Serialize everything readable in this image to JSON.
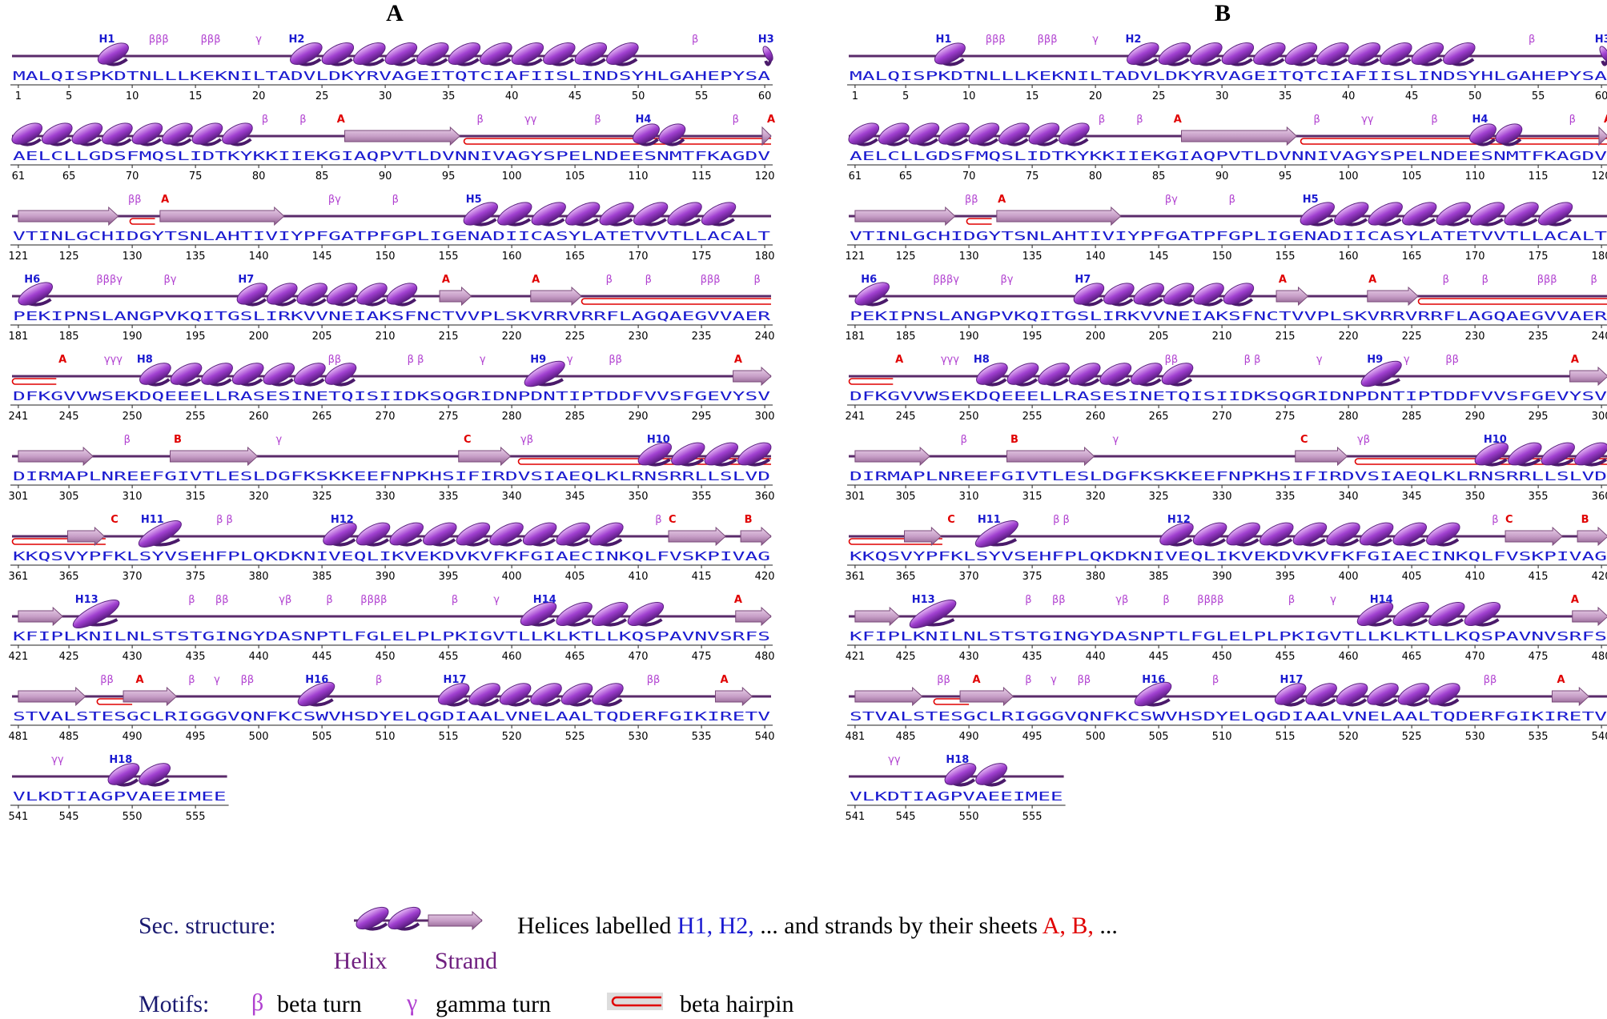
{
  "panels": [
    {
      "label": "A"
    },
    {
      "label": "B"
    }
  ],
  "rows": [
    {
      "sequence": "MALQISPKDTNLLLKEKNILTADVLDKYRVAGEITQTCIAFIISLINDSYHLGAHEPYSA",
      "ticks": [
        1,
        5,
        10,
        15,
        20,
        25,
        30,
        35,
        40,
        45,
        50,
        55,
        60
      ],
      "labels": [
        "H1",
        "βββ",
        "βββ",
        "γ",
        "H2",
        "β",
        "H3"
      ]
    },
    {
      "sequence": "AELCLLGDSFMQSLIDTKYKKIIEKGIAQPVTLDVNNIVAGYSPELNDEESNMTFKAGDV",
      "ticks": [
        61,
        65,
        70,
        75,
        80,
        85,
        90,
        95,
        100,
        105,
        110,
        115,
        120
      ],
      "labels": [
        "β",
        "β",
        "A",
        "β",
        "γγ",
        "β",
        "H4",
        "β",
        "A"
      ]
    },
    {
      "sequence": "VTINLGCHIDGYTSNLAHTIVIYPFGATPFGPLIGENADIICASYLATETVVTLLACALT",
      "ticks": [
        121,
        125,
        130,
        135,
        140,
        145,
        150,
        155,
        160,
        165,
        170,
        175,
        180
      ],
      "labels": [
        "ββ",
        "A",
        "βγ",
        "β",
        "H5"
      ]
    },
    {
      "sequence": "PEKIPNSLANGPVKQITGSLIRKVVNEIAKSFNCTVVPLSKVRRVRRFLAGQAEGVVAER",
      "ticks": [
        181,
        185,
        190,
        195,
        200,
        205,
        210,
        215,
        220,
        225,
        230,
        235,
        240
      ],
      "labels": [
        "H6",
        "βββγ",
        "βγ",
        "H7",
        "A",
        "A",
        "β",
        "β",
        "βββ",
        "β"
      ]
    },
    {
      "sequence": "DFKGVVWSEKDQEEELLRASESINETQISIIDKSQGRIDNPDNTIPTDDFVVSFGEVYSV",
      "ticks": [
        241,
        245,
        250,
        255,
        260,
        265,
        270,
        275,
        280,
        285,
        290,
        295,
        300
      ],
      "labels": [
        "A",
        "γγγ",
        "H8",
        "ββ",
        "β β",
        "γ",
        "H9",
        "γ",
        "ββ",
        "A"
      ]
    },
    {
      "sequence": "DIRMAPLNREEFGIVTLESLDGFKSKKEEFNPKHSIFIRDVSIAEQLKLRNSRRLLSLVD",
      "ticks": [
        301,
        305,
        310,
        315,
        320,
        325,
        330,
        335,
        340,
        345,
        350,
        355,
        360
      ],
      "labels": [
        "β",
        "B",
        "γ",
        "C",
        "γβ",
        "H10"
      ]
    },
    {
      "sequence": "KKQSVYPFKLSYVSEHFPLQKDKNIVEQLIKVEKDVKVFKFGIAECINKQLFVSKPIVAG",
      "ticks": [
        361,
        365,
        370,
        375,
        380,
        385,
        390,
        395,
        400,
        405,
        410,
        415,
        420
      ],
      "labels": [
        "C",
        "H11",
        "β β",
        "H12",
        "β",
        "C",
        "B"
      ]
    },
    {
      "sequence": "KFIPLKNILNLSTSTGINGYDASNPTLFGLELPLPKIGVTLLKLKTLLKQSPAVNVSRFS",
      "ticks": [
        421,
        425,
        430,
        435,
        440,
        445,
        450,
        455,
        460,
        465,
        470,
        475,
        480
      ],
      "labels": [
        "H13",
        "β",
        "ββ",
        "γβ",
        "β",
        "ββββ",
        "β",
        "γ",
        "H14",
        "A"
      ]
    },
    {
      "sequence": "STVALSTESGCLRIGGGVQNFKCSWVHSDYELQGDIAALVNELAALTQDERFGIKIRETV",
      "ticks": [
        481,
        485,
        490,
        495,
        500,
        505,
        510,
        515,
        520,
        525,
        530,
        535,
        540
      ],
      "labels": [
        "ββ",
        "A",
        "β",
        "γ",
        "ββ",
        "H16",
        "β",
        "H17",
        "ββ",
        "A"
      ]
    },
    {
      "sequence": "VLKDTIAGPVAEEIMEE",
      "ticks": [
        541,
        545,
        550,
        555
      ],
      "labels": [
        "γγ",
        "H18"
      ]
    }
  ],
  "legend": {
    "sec_structure": "Sec. structure:",
    "helix": "Helix",
    "strand": "Strand",
    "description": [
      "Helices labelled ",
      "H1,",
      " H2,",
      " ... and strands by their sheets ",
      "A,",
      " B,",
      " ..."
    ],
    "motifs": "Motifs:",
    "beta_symbol": "β",
    "beta_turn": "beta turn",
    "gamma_symbol": "γ",
    "gamma_turn": "gamma turn",
    "beta_hairpin": "beta hairpin"
  }
}
